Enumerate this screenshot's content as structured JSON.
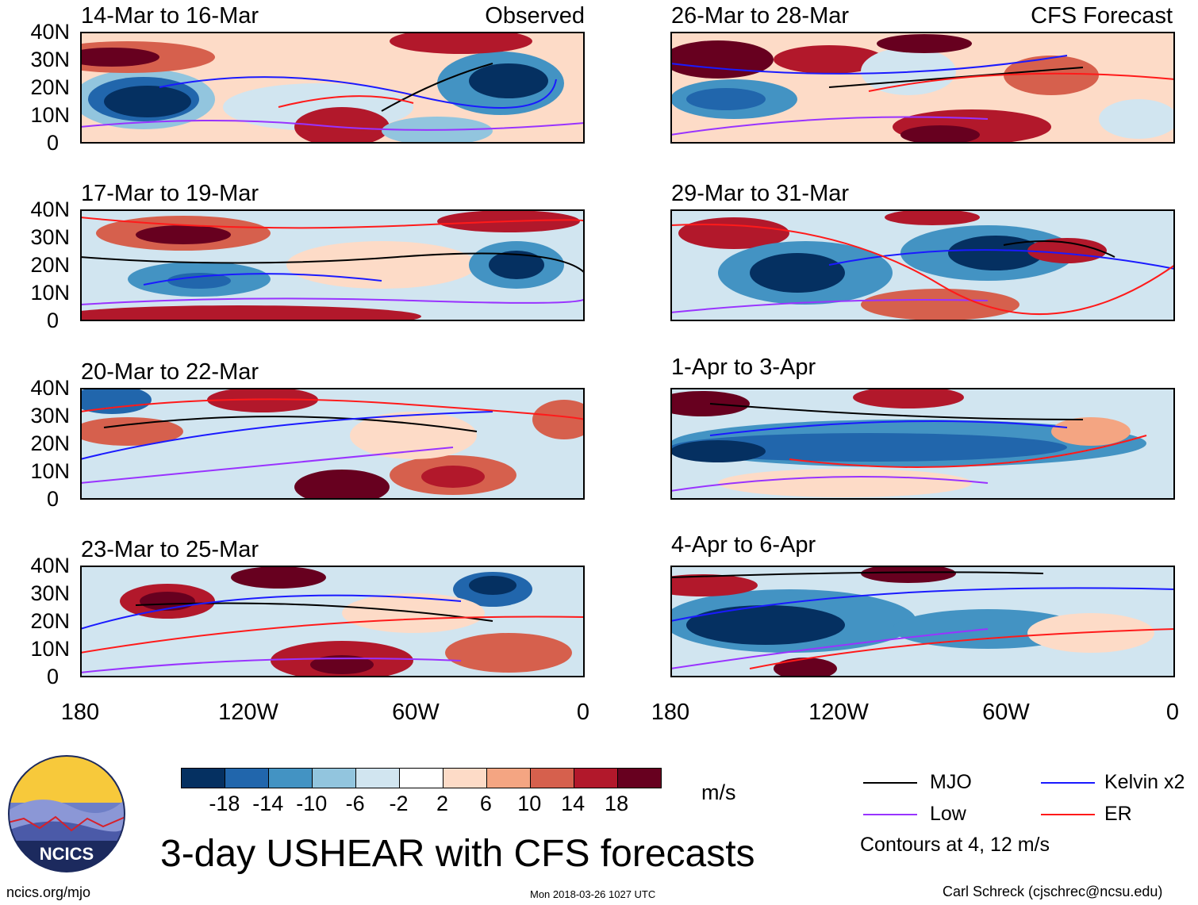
{
  "colorbar": {
    "colors": [
      "#053061",
      "#2166ac",
      "#4393c3",
      "#92c5de",
      "#d1e5f0",
      "#ffffff",
      "#fddbc7",
      "#f4a582",
      "#d6604d",
      "#b2182b",
      "#67001f"
    ],
    "ticks": [
      "-18",
      "-14",
      "-10",
      "-6",
      "-2",
      "2",
      "6",
      "10",
      "14",
      "18"
    ],
    "units": "m/s"
  },
  "axes": {
    "y_labels": [
      "40N",
      "30N",
      "20N",
      "10N",
      "0"
    ],
    "x_labels": [
      "180",
      "120W",
      "60W",
      "0"
    ]
  },
  "panels": [
    {
      "title": "14-Mar to 16-Mar",
      "label": "Observed"
    },
    {
      "title": "17-Mar to 19-Mar",
      "label": ""
    },
    {
      "title": "20-Mar to 22-Mar",
      "label": ""
    },
    {
      "title": "23-Mar to 25-Mar",
      "label": ""
    },
    {
      "title": "26-Mar to 28-Mar",
      "label": "CFS Forecast"
    },
    {
      "title": "29-Mar to 31-Mar",
      "label": ""
    },
    {
      "title": "1-Apr to 3-Apr",
      "label": ""
    },
    {
      "title": "4-Apr to 6-Apr",
      "label": ""
    }
  ],
  "legend": {
    "items": [
      {
        "label": "MJO",
        "color": "#000000"
      },
      {
        "label": "Kelvin x2",
        "color": "#1a1aff"
      },
      {
        "label": "Low",
        "color": "#9933ff"
      },
      {
        "label": "ER",
        "color": "#ff1a1a"
      }
    ],
    "note": "Contours at 4, 12 m/s"
  },
  "title": "3-day USHEAR with CFS forecasts",
  "logo": {
    "text": "NCICS"
  },
  "footer": {
    "left": "ncics.org/mjo",
    "center": "Mon 2018-03-26 1027 UTC",
    "right": "Carl Schreck (cjschrec@ncsu.edu)"
  }
}
